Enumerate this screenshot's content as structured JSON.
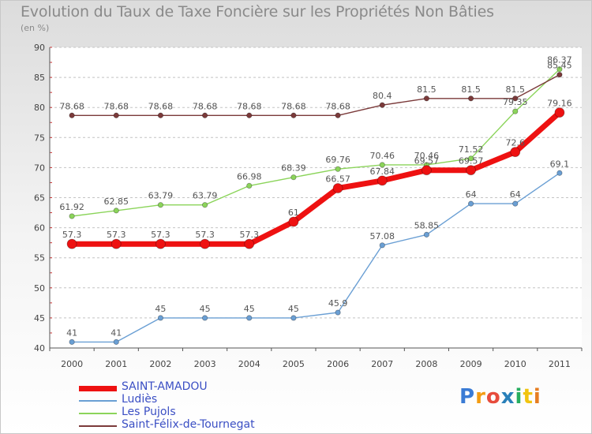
{
  "header": {
    "title": "Evolution du Taux de Taxe Foncière sur les Propriétés Non Bâties",
    "unit": "(en %)"
  },
  "logo": {
    "letters": [
      "P",
      "r",
      "o",
      "x",
      "i",
      "t",
      "i"
    ],
    "colors": [
      "#3a7bd5",
      "#f39c12",
      "#e74c3c",
      "#2980b9",
      "#27ae60",
      "#f1c40f",
      "#e67e22"
    ]
  },
  "chart_data": {
    "type": "line",
    "title": "Evolution du Taux de Taxe Foncière sur les Propriétés Non Bâties",
    "ylabel": "(en %)",
    "x": [
      "2000",
      "2001",
      "2002",
      "2003",
      "2004",
      "2005",
      "2006",
      "2007",
      "2008",
      "2009",
      "2010",
      "2011"
    ],
    "ylim": [
      40,
      90
    ],
    "yticks": [
      40,
      45,
      50,
      55,
      60,
      65,
      70,
      75,
      80,
      85,
      90
    ],
    "grid": "horizontal",
    "series": [
      {
        "name": "SAINT-AMADOU",
        "color": "#ee1111",
        "values": [
          57.3,
          57.3,
          57.3,
          57.3,
          57.3,
          61,
          66.57,
          67.84,
          69.57,
          69.57,
          72.6,
          79.16
        ],
        "labels": [
          "57.3",
          "57.3",
          "57.3",
          "57.3",
          "57.3",
          "61",
          "66.57",
          "67.84",
          "69.57",
          "69.57",
          "72.6",
          "79.16"
        ]
      },
      {
        "name": "Ludiès",
        "color": "#6a9fd4",
        "values": [
          41,
          41,
          45,
          45,
          45,
          45,
          45.9,
          57.08,
          58.85,
          64,
          64,
          69.1
        ],
        "labels": [
          "41",
          "41",
          "45",
          "45",
          "45",
          "45",
          "45.9",
          "57.08",
          "58.85",
          "64",
          "64",
          "69.1"
        ]
      },
      {
        "name": "Les Pujols",
        "color": "#8bd45a",
        "values": [
          61.92,
          62.85,
          63.79,
          63.79,
          66.98,
          68.39,
          69.76,
          70.46,
          70.46,
          71.52,
          79.35,
          86.37
        ],
        "labels": [
          "61.92",
          "62.85",
          "63.79",
          "63.79",
          "66.98",
          "68.39",
          "69.76",
          "70.46",
          "70.46",
          "71.52",
          "79.35",
          "86.37"
        ]
      },
      {
        "name": "Saint-Félix-de-Tournegat",
        "color": "#7b3a3a",
        "values": [
          78.68,
          78.68,
          78.68,
          78.68,
          78.68,
          78.68,
          78.68,
          80.4,
          81.5,
          81.5,
          81.5,
          85.45
        ],
        "labels": [
          "78.68",
          "78.68",
          "78.68",
          "78.68",
          "78.68",
          "78.68",
          "78.68",
          "80.4",
          "81.5",
          "81.5",
          "81.5",
          "85.45"
        ]
      }
    ]
  }
}
